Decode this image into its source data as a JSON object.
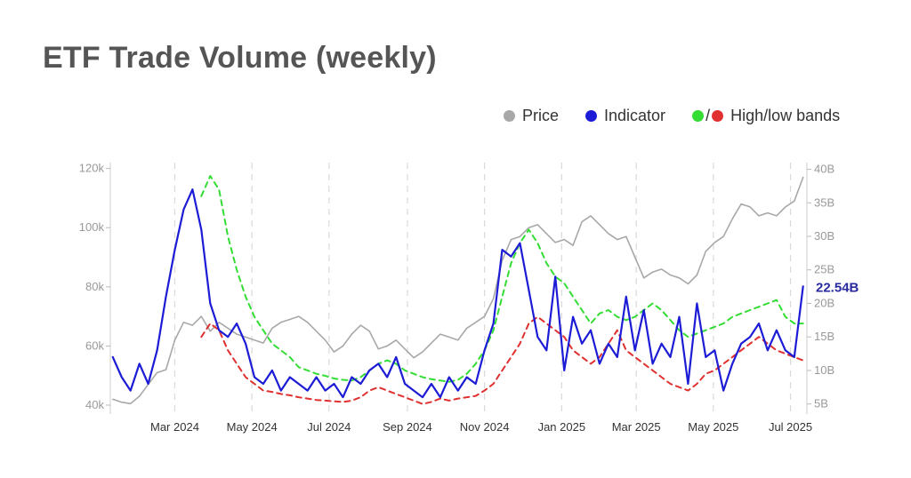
{
  "title": "ETF Trade Volume (weekly)",
  "legend": {
    "price": "Price",
    "indicator": "Indicator",
    "bands": "High/low bands",
    "slash": "/"
  },
  "colors": {
    "price": "#a8a8a8",
    "indicator": "#1c1cd6",
    "high_band": "#33dd33",
    "low_band": "#e03030",
    "grid": "#d9d9d9"
  },
  "chart_data": {
    "type": "line",
    "title": "ETF Trade Volume (weekly)",
    "x": [
      "2024-01-12",
      "2024-01-19",
      "2024-01-26",
      "2024-02-02",
      "2024-02-09",
      "2024-02-16",
      "2024-02-23",
      "2024-03-01",
      "2024-03-08",
      "2024-03-15",
      "2024-03-22",
      "2024-03-29",
      "2024-04-05",
      "2024-04-12",
      "2024-04-19",
      "2024-04-26",
      "2024-05-03",
      "2024-05-10",
      "2024-05-17",
      "2024-05-24",
      "2024-05-31",
      "2024-06-07",
      "2024-06-14",
      "2024-06-21",
      "2024-06-28",
      "2024-07-05",
      "2024-07-12",
      "2024-07-19",
      "2024-07-26",
      "2024-08-02",
      "2024-08-09",
      "2024-08-16",
      "2024-08-23",
      "2024-08-30",
      "2024-09-06",
      "2024-09-13",
      "2024-09-20",
      "2024-09-27",
      "2024-10-04",
      "2024-10-11",
      "2024-10-18",
      "2024-10-25",
      "2024-11-01",
      "2024-11-08",
      "2024-11-15",
      "2024-11-22",
      "2024-11-29",
      "2024-12-06",
      "2024-12-13",
      "2024-12-20",
      "2024-12-27",
      "2025-01-03",
      "2025-01-10",
      "2025-01-17",
      "2025-01-24",
      "2025-01-31",
      "2025-02-07",
      "2025-02-14",
      "2025-02-21",
      "2025-02-28",
      "2025-03-07",
      "2025-03-14",
      "2025-03-21",
      "2025-03-28",
      "2025-04-04",
      "2025-04-11",
      "2025-04-18",
      "2025-04-25",
      "2025-05-02",
      "2025-05-09",
      "2025-05-16",
      "2025-05-23",
      "2025-05-30",
      "2025-06-06",
      "2025-06-13",
      "2025-06-20",
      "2025-06-27",
      "2025-07-04",
      "2025-07-11"
    ],
    "x_ticks": [
      {
        "date": "2024-03-01",
        "label": "Mar 2024"
      },
      {
        "date": "2024-05-01",
        "label": "May 2024"
      },
      {
        "date": "2024-07-01",
        "label": "Jul 2024"
      },
      {
        "date": "2024-09-01",
        "label": "Sep 2024"
      },
      {
        "date": "2024-11-01",
        "label": "Nov 2024"
      },
      {
        "date": "2025-01-01",
        "label": "Jan 2025"
      },
      {
        "date": "2025-03-01",
        "label": "Mar 2025"
      },
      {
        "date": "2025-05-01",
        "label": "May 2025"
      },
      {
        "date": "2025-07-01",
        "label": "Jul 2025"
      }
    ],
    "x_range": [
      "2024-01-10",
      "2025-07-14"
    ],
    "y_left": {
      "ticks": [
        40000,
        60000,
        80000,
        100000,
        120000
      ],
      "tick_labels": [
        "40k",
        "60k",
        "80k",
        "100k",
        "120k"
      ],
      "ylim": [
        37000,
        122000
      ]
    },
    "y_right": {
      "ticks": [
        5,
        10,
        15,
        20,
        25,
        30,
        35,
        40
      ],
      "tick_labels": [
        "5B",
        "10B",
        "15B",
        "20B",
        "25B",
        "30B",
        "35B",
        "40B"
      ],
      "ylim": [
        3.5,
        41
      ]
    },
    "grid": {
      "horizontal": false,
      "vertical_dashed_at_x_ticks": true
    },
    "legend_position": "top-right",
    "last_value_label": "22.54B",
    "series": [
      {
        "name": "Price",
        "axis": "left",
        "values": [
          42000,
          41000,
          40500,
          43000,
          47000,
          51000,
          52000,
          62000,
          68000,
          67000,
          70000,
          65000,
          68000,
          66000,
          64000,
          63000,
          62000,
          61000,
          66000,
          68000,
          69000,
          70000,
          68000,
          65000,
          62000,
          58000,
          60000,
          64000,
          67000,
          65000,
          59000,
          60000,
          62000,
          59000,
          56000,
          58000,
          61000,
          64000,
          63000,
          62000,
          66000,
          68000,
          70000,
          76000,
          89000,
          96000,
          97000,
          100000,
          101000,
          98000,
          95000,
          96000,
          94000,
          102000,
          104000,
          101000,
          98000,
          96000,
          97000,
          90000,
          83000,
          85000,
          86000,
          84000,
          83000,
          81000,
          84000,
          92000,
          95000,
          97000,
          103000,
          108000,
          107000,
          104000,
          105000,
          104000,
          107000,
          109000,
          117000
        ]
      },
      {
        "name": "Indicator",
        "axis": "right",
        "values": [
          12,
          9,
          7,
          11,
          8,
          13,
          21,
          28,
          34,
          37,
          31,
          20,
          16,
          15,
          17,
          14,
          9,
          8,
          10,
          7,
          9,
          8,
          7,
          9,
          7,
          8,
          6,
          9,
          8,
          10,
          11,
          9,
          12,
          8,
          7,
          6,
          8,
          6,
          9,
          7,
          9,
          8,
          13,
          17,
          28,
          27,
          29,
          22,
          15,
          13,
          24,
          10,
          18,
          14,
          16,
          11,
          14,
          12,
          21,
          13,
          19,
          11,
          14,
          12,
          18,
          8,
          20,
          12,
          13,
          7,
          11,
          14,
          15,
          17,
          13,
          16,
          13,
          12,
          22.54
        ]
      },
      {
        "name": "High band",
        "axis": "right",
        "values": [
          null,
          null,
          null,
          null,
          null,
          null,
          null,
          null,
          null,
          null,
          36,
          39,
          37,
          30,
          25,
          21,
          18,
          16,
          14,
          13,
          12,
          10.5,
          10,
          9.5,
          9.2,
          8.8,
          8.6,
          8.5,
          9,
          10,
          11,
          11.5,
          11,
          10,
          9.5,
          9,
          8.7,
          8.5,
          8.3,
          8.6,
          9.5,
          11,
          13,
          16,
          21,
          26,
          29,
          31,
          29,
          26,
          24,
          23,
          21,
          19,
          17,
          18.5,
          19,
          18,
          17.5,
          18,
          19,
          20,
          19,
          17.5,
          16,
          15,
          15.5,
          16,
          16.5,
          17,
          18,
          18.5,
          19,
          19.5,
          20,
          20.5,
          18,
          17,
          17
        ]
      },
      {
        "name": "Low band",
        "axis": "right",
        "values": [
          null,
          null,
          null,
          null,
          null,
          null,
          null,
          null,
          null,
          null,
          15,
          17,
          16,
          13,
          11,
          9,
          8,
          7,
          6.8,
          6.5,
          6.3,
          6,
          5.8,
          5.6,
          5.5,
          5.4,
          5.3,
          5.5,
          6,
          7,
          7.5,
          7,
          6.5,
          6,
          5.5,
          5,
          5.3,
          5.8,
          5.5,
          5.8,
          6,
          6.2,
          7,
          8,
          10,
          12,
          14,
          17,
          18,
          17,
          16,
          15,
          13,
          12,
          11,
          12,
          14,
          16,
          13,
          12,
          11,
          10,
          9,
          8,
          7.5,
          7,
          8,
          9.5,
          10,
          11,
          12,
          13,
          14,
          15,
          14,
          13,
          12.5,
          12,
          11.5
        ]
      }
    ]
  }
}
